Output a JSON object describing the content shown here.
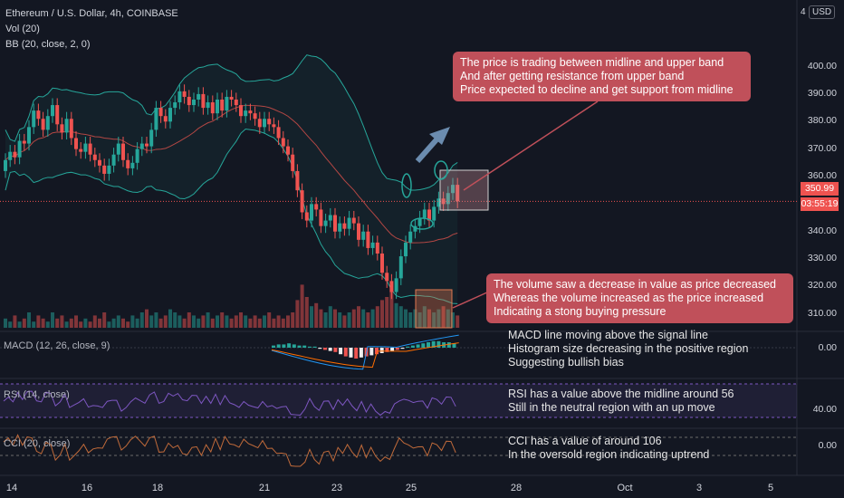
{
  "header": {
    "symbol_line": "Ethereum / U.S. Dollar, 4h, COINBASE",
    "vol_line": "Vol (20)",
    "bb_line": "BB (20, close, 2, 0)"
  },
  "scale": {
    "currency": "USD",
    "count": "4"
  },
  "indicators": {
    "macd_label": "MACD (12, 26, close, 9)",
    "rsi_label": "RSI (14, close)",
    "cci_label": "CCI (20, close)"
  },
  "annotations": {
    "price_box": "The price is trading between midline and upper band\nAnd after getting resistance from upper band\nPrice expected to decline and get support from midline",
    "volume_box": "The volume saw a decrease in value as price decreased\nWhereas the volume increased as the price increased\nIndicating a stong buying pressure",
    "macd_note": "MACD line moving above the signal line\nHistogram size decreasing in the positive region\nSuggesting bullish bias",
    "rsi_note": "RSI has a value above the midline around 56\nStill in the neutral region with an up move",
    "cci_note": "CCI has a value of around 106\nIn the oversold region indicating uptrend"
  },
  "colors": {
    "up": "#26a69a",
    "down": "#ef5350",
    "bb_band": "#26a69a",
    "bb_mid": "#b34744",
    "annotation": "#c0505a",
    "macd_line": "#2196f3",
    "signal_line": "#ff6d00",
    "rsi_line": "#7e57c2",
    "cci_line": "#c06a3a"
  },
  "current_price": "350.99",
  "countdown": "03:55:19",
  "chart_data": [
    {
      "type": "candlestick",
      "title": "Ethereum / U.S. Dollar, 4h, COINBASE",
      "x_tick_labels": [
        "14",
        "16",
        "18",
        "21",
        "23",
        "25",
        "28",
        "Oct",
        "3",
        "5"
      ],
      "y_tick_labels": [
        "400.00",
        "390.00",
        "380.00",
        "370.00",
        "360.00",
        "350.00",
        "340.00",
        "330.00",
        "320.00",
        "310.00"
      ],
      "ylim": [
        305,
        415
      ],
      "last_price": 350.99,
      "closes": [
        366,
        369,
        367,
        373,
        372,
        378,
        384,
        381,
        377,
        382,
        386,
        379,
        376,
        381,
        374,
        370,
        369,
        372,
        368,
        366,
        364,
        361,
        364,
        368,
        372,
        366,
        363,
        365,
        370,
        372,
        371,
        377,
        385,
        382,
        380,
        385,
        387,
        391,
        389,
        386,
        388,
        390,
        385,
        387,
        383,
        388,
        384,
        389,
        388,
        386,
        382,
        384,
        383,
        381,
        378,
        381,
        379,
        378,
        374,
        371,
        368,
        362,
        355,
        347,
        344,
        350,
        348,
        342,
        344,
        346,
        340,
        343,
        341,
        345,
        343,
        337,
        340,
        334,
        336,
        332,
        325,
        322,
        318,
        323,
        331,
        336,
        340,
        342,
        345,
        348,
        344,
        349,
        352,
        350,
        354,
        357,
        351
      ],
      "opens": [
        362,
        366,
        369,
        367,
        373,
        372,
        378,
        384,
        381,
        377,
        382,
        386,
        379,
        376,
        381,
        374,
        370,
        369,
        372,
        368,
        366,
        364,
        361,
        364,
        368,
        372,
        366,
        363,
        365,
        370,
        372,
        371,
        377,
        385,
        382,
        380,
        385,
        387,
        391,
        389,
        386,
        388,
        390,
        385,
        387,
        383,
        388,
        384,
        389,
        388,
        386,
        382,
        384,
        383,
        381,
        378,
        381,
        379,
        378,
        374,
        371,
        368,
        362,
        355,
        347,
        344,
        350,
        348,
        342,
        344,
        346,
        340,
        343,
        341,
        345,
        343,
        337,
        340,
        334,
        336,
        332,
        325,
        322,
        318,
        323,
        331,
        336,
        340,
        342,
        345,
        348,
        344,
        349,
        352,
        350,
        354,
        357
      ]
    },
    {
      "type": "bar",
      "title": "Vol (20)",
      "volumes": [
        3,
        2,
        4,
        2,
        3,
        5,
        2,
        4,
        3,
        2,
        5,
        3,
        4,
        2,
        3,
        4,
        2,
        3,
        2,
        4,
        3,
        5,
        2,
        3,
        4,
        3,
        2,
        4,
        3,
        5,
        6,
        4,
        5,
        3,
        4,
        6,
        5,
        4,
        3,
        5,
        4,
        3,
        4,
        5,
        3,
        4,
        5,
        4,
        3,
        4,
        5,
        4,
        3,
        4,
        3,
        4,
        5,
        3,
        4,
        3,
        4,
        5,
        9,
        14,
        10,
        7,
        8,
        6,
        5,
        7,
        6,
        5,
        4,
        5,
        6,
        7,
        6,
        5,
        6,
        7,
        9,
        10,
        12,
        8,
        7,
        6,
        5,
        6,
        5,
        7,
        6,
        5,
        6,
        7,
        6,
        5,
        4
      ]
    },
    {
      "type": "histogram",
      "title": "MACD (12, 26, close, 9)",
      "y_tick_labels": [
        "0.00"
      ]
    },
    {
      "type": "line",
      "title": "RSI (14, close)",
      "y_tick_labels": [
        "40.00"
      ]
    },
    {
      "type": "line",
      "title": "CCI (20, close)",
      "y_tick_labels": [
        "0.00"
      ]
    }
  ]
}
